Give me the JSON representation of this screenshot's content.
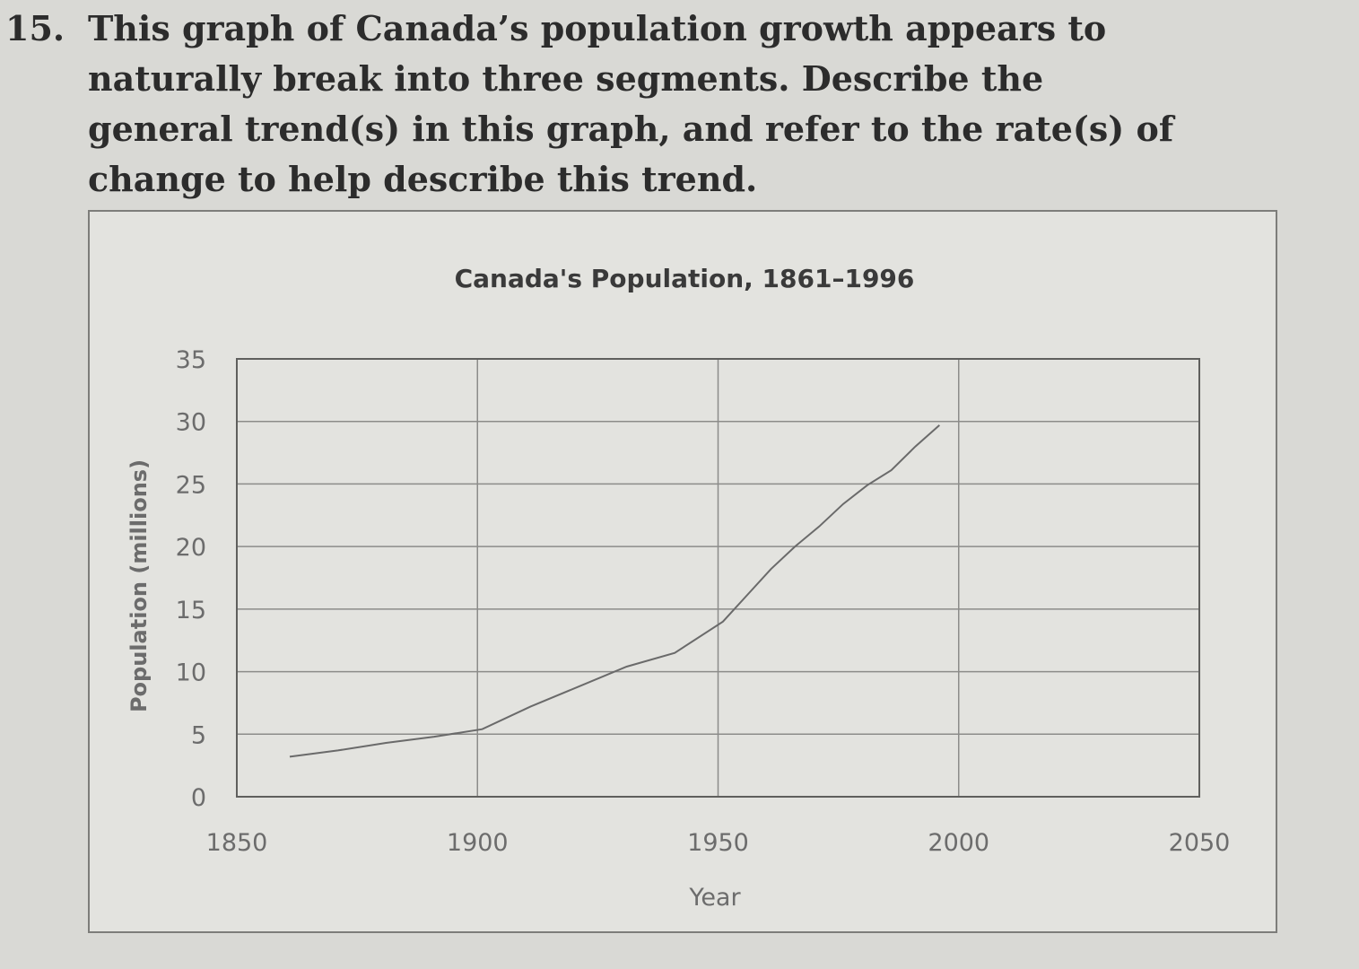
{
  "question": {
    "number": "15.",
    "text": "This graph of Canada’s population growth appears to naturally break into three segments. Describe the general trend(s) in this graph, and refer to the rate(s) of change to help describe this trend."
  },
  "colors": {
    "background": "#d9d9d5",
    "grid": "#8c8c8a",
    "line": "#6a6a6a"
  },
  "chart_data": {
    "type": "line",
    "title": "Canada's Population, 1861–1996",
    "xlabel": "Year",
    "ylabel": "Population (millions)",
    "xlim": [
      1850,
      2050
    ],
    "ylim": [
      0,
      35
    ],
    "xticks": [
      1850,
      1900,
      1950,
      2000,
      2050
    ],
    "yticks": [
      0,
      5,
      10,
      15,
      20,
      25,
      30,
      35
    ],
    "grid": true,
    "series": [
      {
        "x": [
          1861,
          1871,
          1881,
          1891,
          1901,
          1911,
          1921,
          1931,
          1941,
          1951,
          1956,
          1961,
          1966,
          1971,
          1976,
          1981,
          1986,
          1991,
          1996
        ],
        "y": [
          3.2,
          3.7,
          4.3,
          4.8,
          5.4,
          7.2,
          8.8,
          10.4,
          11.5,
          14.0,
          16.1,
          18.2,
          20.0,
          21.6,
          23.4,
          24.9,
          26.1,
          28.0,
          29.7
        ]
      }
    ]
  }
}
